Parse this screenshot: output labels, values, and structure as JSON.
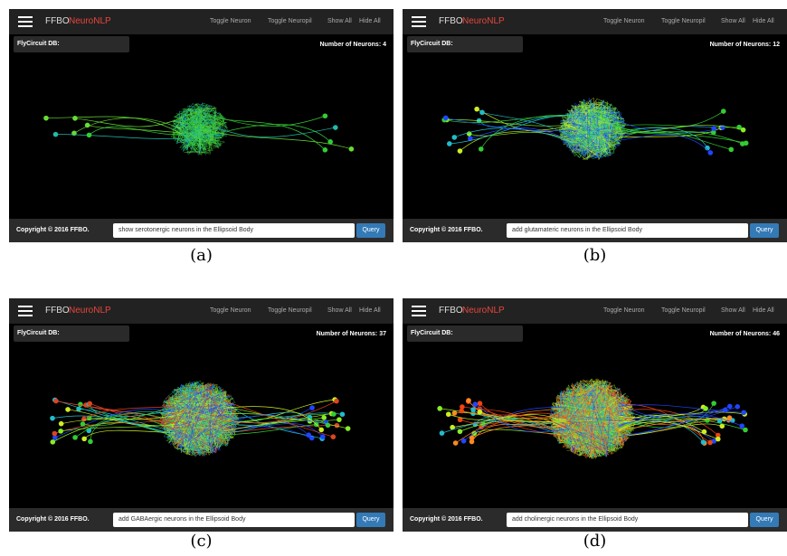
{
  "panels": [
    {
      "brand": "FFBO",
      "app": "NeuroNLP",
      "nav": [
        "Toggle Neuron",
        "Toggle Neuropil",
        "Show All",
        "Hide All"
      ],
      "db_label": "FlyCircuit DB:",
      "neuron_count": "Number of Neurons: 4",
      "copyright": "Copyright © 2016 FFBO.",
      "query": "show serotonergic neurons in the Ellipsoid Body",
      "button": "Query",
      "caption": "(a)"
    },
    {
      "brand": "FFBO",
      "app": "NeuroNLP",
      "nav": [
        "Toggle Neuron",
        "Toggle Neuropil",
        "Show All",
        "Hide All"
      ],
      "db_label": "FlyCircuit DB:",
      "neuron_count": "Number of Neurons: 12",
      "copyright": "Copyright © 2016 FFBO.",
      "query": "add glutamateric neurons in the Ellipsoid Body",
      "button": "Query",
      "caption": "(b)"
    },
    {
      "brand": "FFBO",
      "app": "NeuroNLP",
      "nav": [
        "Toggle Neuron",
        "Toggle Neuropil",
        "Show All",
        "Hide All"
      ],
      "db_label": "FlyCircuit DB:",
      "neuron_count": "Number of Neurons: 37",
      "copyright": "Copyright © 2016 FFBO.",
      "query": "add GABAergic neurons in the Ellipsoid Body",
      "button": "Query",
      "caption": "(c)"
    },
    {
      "brand": "FFBO",
      "app": "NeuroNLP",
      "nav": [
        "Toggle Neuron",
        "Toggle Neuropil",
        "Show All",
        "Hide All"
      ],
      "db_label": "FlyCircuit DB:",
      "neuron_count": "Number of Neurons: 46",
      "copyright": "Copyright © 2016 FFBO.",
      "query": "add cholinergic neurons in the Ellipsoid Body",
      "button": "Query",
      "caption": "(d)"
    }
  ]
}
